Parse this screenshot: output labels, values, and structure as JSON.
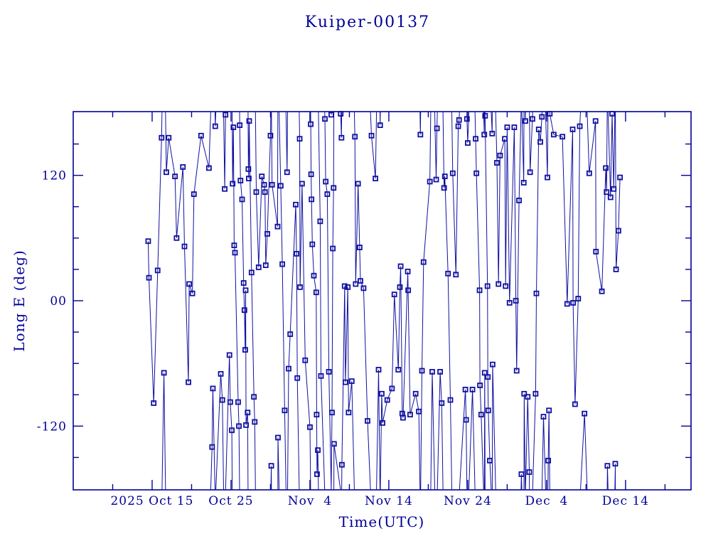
{
  "title": "Kuiper-00137",
  "colors": {
    "background": "#ffffff",
    "axis": "#000099",
    "text": "#000099",
    "line": "#1010a0",
    "marker": "#1010a0"
  },
  "chart_data": {
    "type": "line",
    "title": "Kuiper-00137",
    "xlabel": "Time(UTC)",
    "ylabel": "Long E (deg)",
    "x_unit": "days since 2025 Oct 5 00:00 UTC",
    "xlim": [
      0,
      78.3
    ],
    "ylim": [
      -181,
      181
    ],
    "wrap_at": 180,
    "grid": false,
    "legend": "none",
    "marker_style": "open-square",
    "x_major_ticks": [
      {
        "day": 10,
        "label": "2025 Oct 15"
      },
      {
        "day": 20,
        "label": "Oct 25"
      },
      {
        "day": 30,
        "label": "Nov  4"
      },
      {
        "day": 40,
        "label": "Nov 14"
      },
      {
        "day": 50,
        "label": "Nov 24"
      },
      {
        "day": 60,
        "label": "Dec  4"
      },
      {
        "day": 70,
        "label": "Dec 14"
      }
    ],
    "x_minor_ticks": [
      5,
      15,
      25,
      35,
      45,
      55,
      65,
      75
    ],
    "y_major_ticks": [
      {
        "value": 120,
        "label": "120"
      },
      {
        "value": 0,
        "label": "00"
      },
      {
        "value": -120,
        "label": "-120"
      }
    ],
    "y_minor_ticks": [
      -150,
      -90,
      -60,
      -30,
      30,
      60,
      90,
      150
    ],
    "series": [
      {
        "name": "Long E (deg)",
        "points": [
          [
            9.5,
            57
          ],
          [
            9.6,
            22
          ],
          [
            10.2,
            -98
          ],
          [
            10.7,
            29
          ],
          [
            11.2,
            156
          ],
          [
            11.5,
            -69
          ],
          [
            11.8,
            123
          ],
          [
            12.1,
            156
          ],
          [
            12.9,
            119
          ],
          [
            13.1,
            60
          ],
          [
            13.9,
            128
          ],
          [
            14.1,
            52
          ],
          [
            14.6,
            -78
          ],
          [
            14.7,
            16
          ],
          [
            15.1,
            7
          ],
          [
            15.3,
            102
          ],
          [
            16.2,
            158
          ],
          [
            17.2,
            127
          ],
          [
            17.6,
            -140
          ],
          [
            17.7,
            -84
          ],
          [
            18.0,
            167
          ],
          [
            18.7,
            -70
          ],
          [
            18.9,
            -95
          ],
          [
            19.2,
            107
          ],
          [
            19.3,
            178
          ],
          [
            19.8,
            -52
          ],
          [
            19.9,
            -97
          ],
          [
            20.1,
            -124
          ],
          [
            20.2,
            112
          ],
          [
            20.3,
            166
          ],
          [
            20.4,
            53
          ],
          [
            20.5,
            46
          ],
          [
            20.9,
            -97
          ],
          [
            21.0,
            -120
          ],
          [
            21.1,
            168
          ],
          [
            21.2,
            115
          ],
          [
            21.4,
            97
          ],
          [
            21.6,
            17
          ],
          [
            21.7,
            -9
          ],
          [
            21.8,
            -47
          ],
          [
            21.85,
            10
          ],
          [
            21.9,
            -119
          ],
          [
            22.1,
            -107
          ],
          [
            22.2,
            126
          ],
          [
            22.25,
            117
          ],
          [
            22.3,
            172
          ],
          [
            22.6,
            27
          ],
          [
            22.9,
            -92
          ],
          [
            23.0,
            -116
          ],
          [
            23.2,
            104
          ],
          [
            23.5,
            32
          ],
          [
            23.9,
            119
          ],
          [
            24.2,
            111
          ],
          [
            24.3,
            104
          ],
          [
            24.4,
            34
          ],
          [
            24.6,
            64
          ],
          [
            25.0,
            158
          ],
          [
            25.1,
            -158
          ],
          [
            25.2,
            111
          ],
          [
            25.9,
            71
          ],
          [
            25.95,
            -131
          ],
          [
            26.3,
            110
          ],
          [
            26.5,
            35
          ],
          [
            26.8,
            -105
          ],
          [
            27.1,
            123
          ],
          [
            27.3,
            -65
          ],
          [
            27.5,
            -32
          ],
          [
            28.2,
            92
          ],
          [
            28.3,
            45
          ],
          [
            28.4,
            -74
          ],
          [
            28.7,
            155
          ],
          [
            28.75,
            13
          ],
          [
            29.0,
            112
          ],
          [
            29.4,
            -57
          ],
          [
            30.0,
            -121
          ],
          [
            30.1,
            169
          ],
          [
            30.15,
            121
          ],
          [
            30.2,
            97
          ],
          [
            30.3,
            54
          ],
          [
            30.5,
            24
          ],
          [
            30.8,
            8
          ],
          [
            30.85,
            -109
          ],
          [
            30.9,
            -166
          ],
          [
            31.0,
            -143
          ],
          [
            31.3,
            76
          ],
          [
            31.4,
            -72
          ],
          [
            31.9,
            174
          ],
          [
            32.0,
            114
          ],
          [
            32.2,
            102
          ],
          [
            32.4,
            -68
          ],
          [
            32.7,
            178
          ],
          [
            32.8,
            -107
          ],
          [
            32.9,
            50
          ],
          [
            33.0,
            108
          ],
          [
            33.05,
            -137
          ],
          [
            33.9,
            179
          ],
          [
            34.0,
            156
          ],
          [
            34.05,
            -157
          ],
          [
            34.4,
            14
          ],
          [
            34.5,
            -78
          ],
          [
            34.8,
            13
          ],
          [
            34.9,
            -107
          ],
          [
            35.3,
            -77
          ],
          [
            35.7,
            157
          ],
          [
            35.8,
            16
          ],
          [
            36.1,
            112
          ],
          [
            36.3,
            51
          ],
          [
            36.4,
            19
          ],
          [
            36.8,
            12
          ],
          [
            37.3,
            -115
          ],
          [
            37.8,
            158
          ],
          [
            38.3,
            117
          ],
          [
            38.7,
            -66
          ],
          [
            38.9,
            168
          ],
          [
            39.1,
            -89
          ],
          [
            39.2,
            -117
          ],
          [
            39.8,
            -95
          ],
          [
            40.4,
            -84
          ],
          [
            40.7,
            6
          ],
          [
            41.2,
            -66
          ],
          [
            41.4,
            13
          ],
          [
            41.5,
            33
          ],
          [
            41.7,
            -108
          ],
          [
            41.8,
            -112
          ],
          [
            42.4,
            28
          ],
          [
            42.45,
            10
          ],
          [
            42.7,
            -109
          ],
          [
            43.4,
            -89
          ],
          [
            43.8,
            -106
          ],
          [
            44.0,
            159
          ],
          [
            44.2,
            -67
          ],
          [
            44.4,
            37
          ],
          [
            45.2,
            114
          ],
          [
            45.5,
            -68
          ],
          [
            46.0,
            116
          ],
          [
            46.1,
            165
          ],
          [
            46.5,
            -68
          ],
          [
            46.7,
            -98
          ],
          [
            47.0,
            108
          ],
          [
            47.1,
            119
          ],
          [
            47.5,
            26
          ],
          [
            47.8,
            -95
          ],
          [
            48.1,
            122
          ],
          [
            48.5,
            25
          ],
          [
            48.8,
            167
          ],
          [
            48.9,
            173
          ],
          [
            49.7,
            -85
          ],
          [
            49.8,
            -114
          ],
          [
            49.9,
            174
          ],
          [
            50.0,
            151
          ],
          [
            50.6,
            -85
          ],
          [
            51.0,
            155
          ],
          [
            51.1,
            122
          ],
          [
            51.5,
            10
          ],
          [
            51.55,
            -81
          ],
          [
            51.7,
            -109
          ],
          [
            52.1,
            159
          ],
          [
            52.15,
            -69
          ],
          [
            52.2,
            177
          ],
          [
            52.5,
            14
          ],
          [
            52.55,
            -73
          ],
          [
            52.6,
            -105
          ],
          [
            52.8,
            -153
          ],
          [
            53.1,
            160
          ],
          [
            53.15,
            -61
          ],
          [
            53.7,
            132
          ],
          [
            53.9,
            16
          ],
          [
            54.1,
            139
          ],
          [
            54.7,
            155
          ],
          [
            54.8,
            14
          ],
          [
            55.0,
            166
          ],
          [
            55.3,
            -2
          ],
          [
            55.9,
            166
          ],
          [
            56.1,
            0
          ],
          [
            56.2,
            -67
          ],
          [
            56.5,
            96
          ],
          [
            56.8,
            -166
          ],
          [
            57.1,
            113
          ],
          [
            57.15,
            -89
          ],
          [
            57.3,
            172
          ],
          [
            57.6,
            -92
          ],
          [
            57.8,
            -164
          ],
          [
            57.9,
            123
          ],
          [
            58.2,
            174
          ],
          [
            58.6,
            -89
          ],
          [
            58.7,
            7
          ],
          [
            59.0,
            164
          ],
          [
            59.2,
            152
          ],
          [
            59.4,
            176
          ],
          [
            59.6,
            -111
          ],
          [
            60.1,
            118
          ],
          [
            60.2,
            -153
          ],
          [
            60.3,
            -105
          ],
          [
            60.4,
            179
          ],
          [
            60.9,
            159
          ],
          [
            62.0,
            157
          ],
          [
            62.6,
            -3
          ],
          [
            63.3,
            164
          ],
          [
            63.35,
            -2
          ],
          [
            63.6,
            -99
          ],
          [
            64.0,
            2
          ],
          [
            64.2,
            167
          ],
          [
            64.8,
            -108
          ],
          [
            65.4,
            122
          ],
          [
            66.2,
            172
          ],
          [
            66.25,
            47
          ],
          [
            67.0,
            9
          ],
          [
            67.5,
            127
          ],
          [
            67.6,
            104
          ],
          [
            67.7,
            -158
          ],
          [
            68.1,
            99
          ],
          [
            68.3,
            179
          ],
          [
            68.5,
            107
          ],
          [
            68.7,
            -156
          ],
          [
            68.8,
            30
          ],
          [
            69.1,
            67
          ],
          [
            69.3,
            118
          ]
        ]
      }
    ]
  }
}
